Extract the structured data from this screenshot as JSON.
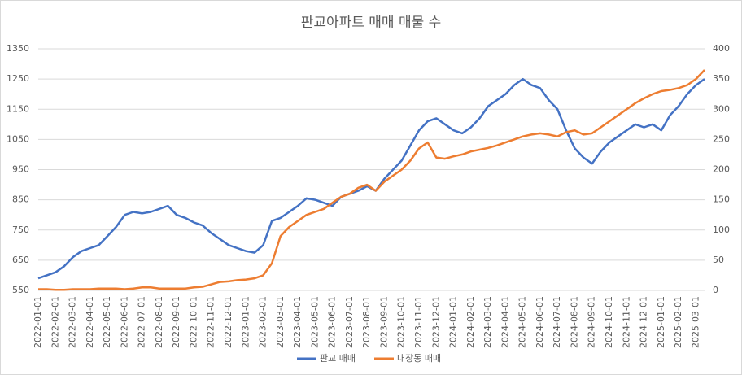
{
  "chart_data": {
    "type": "line",
    "title": "판교아파트 매매 매물 수",
    "categories": [
      "2022-01-01",
      null,
      "2022-02-01",
      null,
      "2022-03-01",
      null,
      "2022-04-01",
      null,
      "2022-05-01",
      null,
      "2022-06-01",
      null,
      "2022-07-01",
      null,
      "2022-08-01",
      null,
      "2022-09-01",
      null,
      "2022-10-01",
      null,
      "2022-11-01",
      null,
      "2022-12-01",
      null,
      "2023-01-01",
      null,
      "2023-02-01",
      null,
      "2023-03-01",
      null,
      "2023-04-01",
      null,
      "2023-05-01",
      null,
      "2023-06-01",
      null,
      "2023-07-01",
      null,
      "2023-08-01",
      null,
      "2023-09-01",
      null,
      "2023-10-01",
      null,
      "2023-11-01",
      null,
      "2023-12-01",
      null,
      "2024-01-01",
      null,
      "2024-02-01",
      null,
      "2024-03-01",
      null,
      "2024-04-01",
      null,
      "2024-05-01",
      null,
      "2024-06-01",
      null,
      "2024-07-01",
      null,
      "2024-08-01",
      null,
      "2024-09-01",
      null,
      "2024-10-01",
      null,
      "2024-11-01",
      null,
      "2024-12-01",
      null,
      "2025-01-01",
      null,
      "2025-02-01",
      null,
      "2025-03-01",
      null
    ],
    "series": [
      {
        "name": "판교 매매",
        "color": "#4472c4",
        "values": [
          590,
          600,
          610,
          630,
          660,
          680,
          690,
          700,
          730,
          760,
          800,
          810,
          805,
          810,
          820,
          830,
          800,
          790,
          775,
          765,
          740,
          720,
          700,
          690,
          680,
          675,
          700,
          780,
          790,
          810,
          830,
          855,
          850,
          840,
          830,
          860,
          870,
          880,
          895,
          880,
          920,
          950,
          980,
          1030,
          1080,
          1110,
          1120,
          1100,
          1080,
          1070,
          1090,
          1120,
          1160,
          1180,
          1200,
          1230,
          1250,
          1230,
          1220,
          1180,
          1150,
          1080,
          1020,
          990,
          970,
          1010,
          1040,
          1060,
          1080,
          1100,
          1090,
          1100,
          1080,
          1130,
          1160,
          1200,
          1230,
          1250
        ]
      },
      {
        "name": "대장동 매매",
        "color": "#ed7d31",
        "axis": "y2",
        "values": [
          2,
          2,
          1,
          1,
          2,
          2,
          2,
          3,
          3,
          3,
          2,
          3,
          5,
          5,
          3,
          3,
          3,
          3,
          5,
          6,
          10,
          14,
          15,
          17,
          18,
          20,
          25,
          45,
          90,
          105,
          115,
          125,
          130,
          135,
          145,
          155,
          160,
          170,
          175,
          165,
          180,
          190,
          200,
          215,
          235,
          245,
          220,
          218,
          222,
          225,
          230,
          233,
          236,
          240,
          245,
          250,
          255,
          258,
          260,
          258,
          255,
          262,
          265,
          258,
          260,
          270,
          280,
          290,
          300,
          310,
          318,
          325,
          330,
          332,
          335,
          340,
          350,
          365
        ]
      }
    ],
    "ylim": [
      550,
      1350
    ],
    "yticks": [
      550,
      650,
      750,
      850,
      950,
      1050,
      1150,
      1250,
      1350
    ],
    "y2lim": [
      0,
      400
    ],
    "y2ticks": [
      0,
      50,
      100,
      150,
      200,
      250,
      300,
      350,
      400
    ],
    "grid": true,
    "legend": "bottom"
  }
}
